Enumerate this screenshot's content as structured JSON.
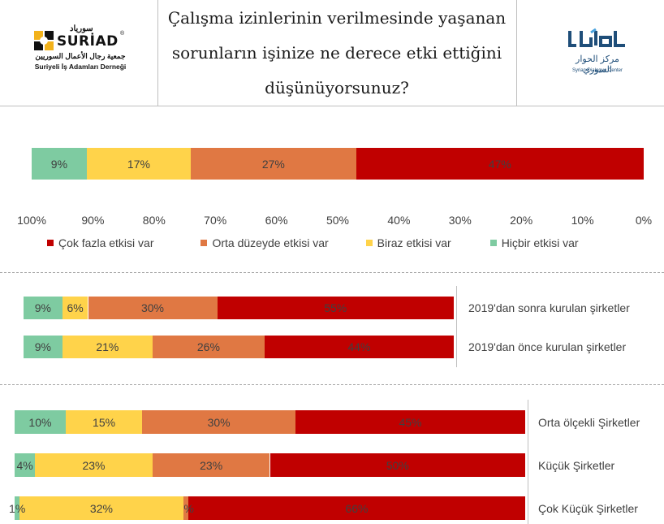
{
  "header": {
    "title": "Çalışma izinlerinin verilmesinde yaşanan sorunların işinize ne derece etki ettiğini düşünüyorsunuz?",
    "left_logo": {
      "brand": "SURİAD",
      "arabic_top": "سورياد",
      "registered": "®",
      "arabic_name": "جمعية رجال الأعمال السوريين",
      "turkish_name": "Suriyeli İş Adamları Derneği"
    },
    "right_logo": {
      "mark": "الحوار",
      "arabic_name": "مركز الحوار السوري",
      "english_name": "Syrian Dialogue Center"
    }
  },
  "colors": {
    "cok_fazla": "#c00000",
    "orta": "#e07843",
    "biraz": "#ffd34a",
    "hicbir": "#7ecba1"
  },
  "chart_data": [
    {
      "type": "bar",
      "orientation": "horizontal",
      "stacked": true,
      "x_reversed": true,
      "xlim": [
        0,
        100
      ],
      "x_ticks": [
        "100%",
        "90%",
        "80%",
        "70%",
        "60%",
        "50%",
        "40%",
        "30%",
        "20%",
        "10%",
        "0%"
      ],
      "categories": [
        ""
      ],
      "series": [
        {
          "name": "Çok fazla etkisi var",
          "color_key": "cok_fazla",
          "values": [
            47
          ]
        },
        {
          "name": "Orta düzeyde etkisi var",
          "color_key": "orta",
          "values": [
            27
          ]
        },
        {
          "name": "Biraz etkisi var",
          "color_key": "biraz",
          "values": [
            17
          ]
        },
        {
          "name": "Hiçbir etkisi var",
          "color_key": "hicbir",
          "values": [
            9
          ]
        }
      ],
      "legend": "bottom"
    },
    {
      "type": "bar",
      "orientation": "horizontal",
      "stacked": true,
      "x_reversed": true,
      "categories": [
        "2019'dan sonra kurulan şirketler",
        "2019'dan önce kurulan şirketler"
      ],
      "series": [
        {
          "name": "Çok fazla etkisi var",
          "color_key": "cok_fazla",
          "values": [
            55,
            44
          ]
        },
        {
          "name": "Orta düzeyde etkisi var",
          "color_key": "orta",
          "values": [
            30,
            26
          ]
        },
        {
          "name": "Biraz etkisi var",
          "color_key": "biraz",
          "values": [
            6,
            21
          ]
        },
        {
          "name": "Hiçbir etkisi var",
          "color_key": "hicbir",
          "values": [
            9,
            9
          ]
        }
      ]
    },
    {
      "type": "bar",
      "orientation": "horizontal",
      "stacked": true,
      "x_reversed": true,
      "categories": [
        "Orta ölçekli Şirketler",
        "Küçük Şirketler",
        "Çok Küçük Şirketler"
      ],
      "series": [
        {
          "name": "Çok fazla etkisi var",
          "color_key": "cok_fazla",
          "values": [
            45,
            50,
            66
          ]
        },
        {
          "name": "Orta düzeyde etkisi var",
          "color_key": "orta",
          "values": [
            30,
            23,
            1
          ]
        },
        {
          "name": "Biraz etkisi var",
          "color_key": "biraz",
          "values": [
            15,
            23,
            32
          ]
        },
        {
          "name": "Hiçbir etkisi var",
          "color_key": "hicbir",
          "values": [
            10,
            4,
            1
          ]
        }
      ]
    }
  ]
}
